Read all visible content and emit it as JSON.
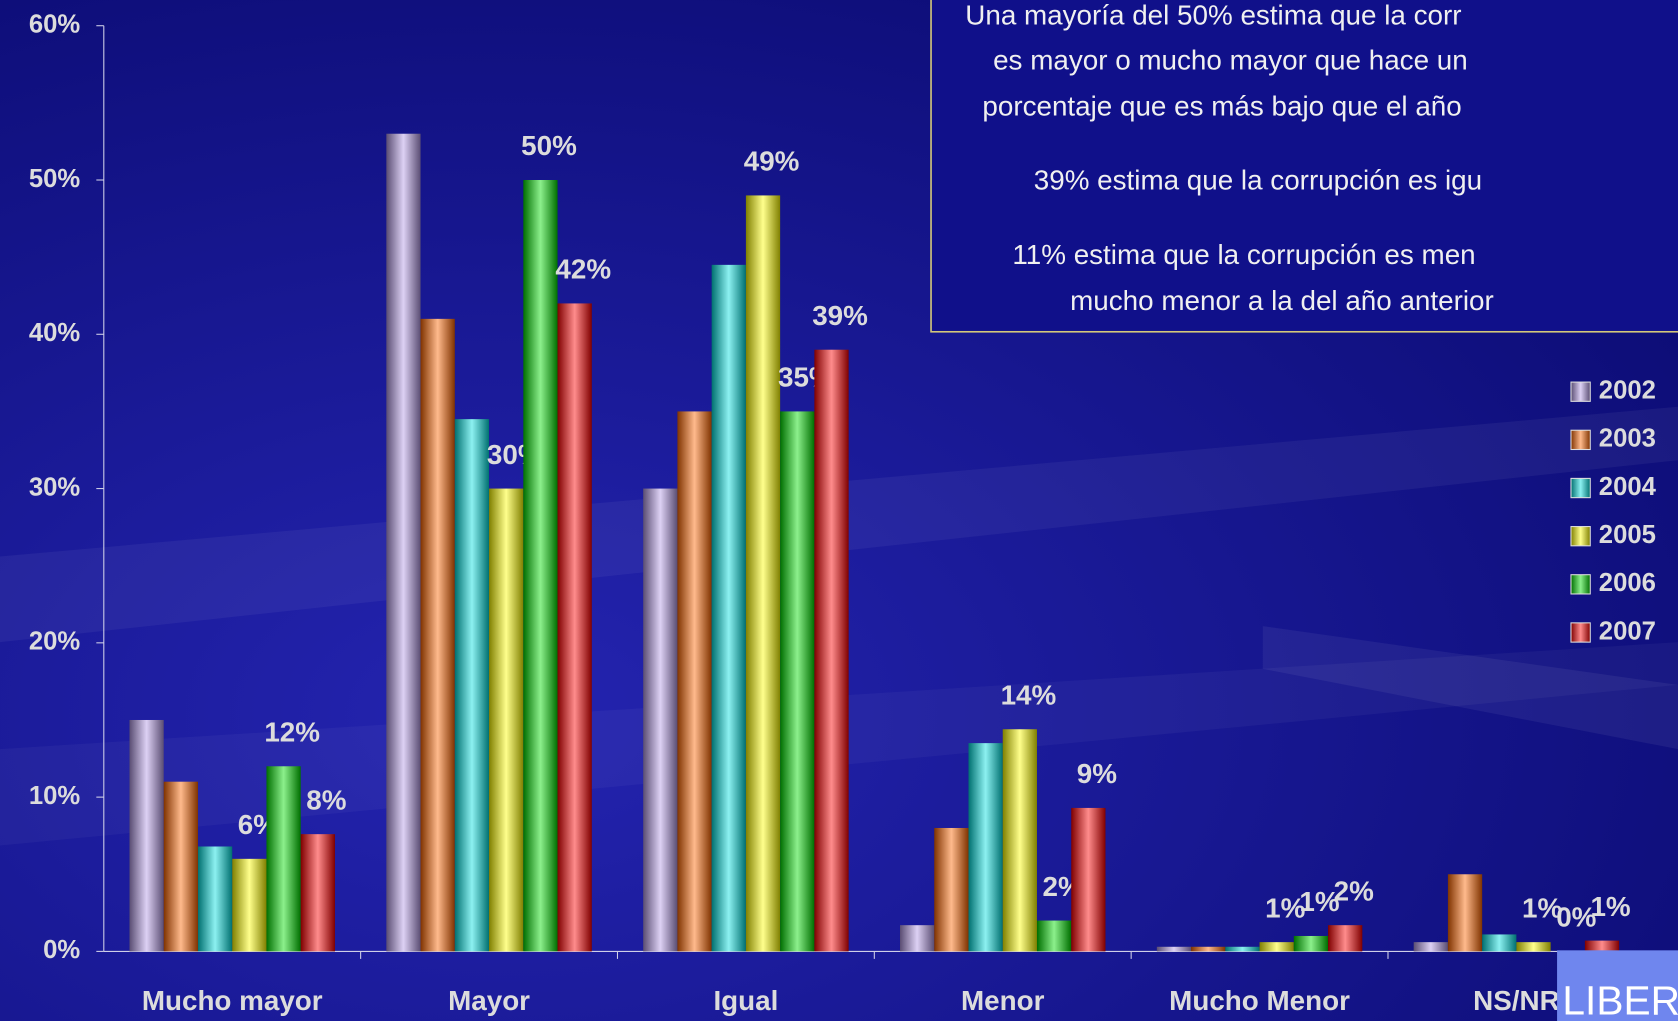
{
  "chart_data": {
    "type": "bar",
    "annotations": [
      "Una mayoría del 50% estima que la corr",
      "es mayor o mucho mayor que hace un",
      "porcentaje que es más bajo que el año",
      "39% estima que la corrupción es igu",
      "11% estima que la corrupción es men",
      "mucho menor a la del año anterior"
    ],
    "logo": "LIBERT",
    "categories": [
      "Mucho mayor",
      "Mayor",
      "Igual",
      "Menor",
      "Mucho Menor",
      "NS/NR"
    ],
    "series": [
      {
        "name": "2002",
        "color": "#b399e6",
        "values": [
          15,
          53,
          30,
          1.7,
          0.3,
          0.6
        ]
      },
      {
        "name": "2003",
        "color": "#ff6600",
        "values": [
          11,
          41,
          35,
          8,
          0.3,
          5
        ]
      },
      {
        "name": "2004",
        "color": "#00e0e0",
        "values": [
          6.8,
          34.5,
          44.5,
          13.5,
          0.3,
          1.1
        ]
      },
      {
        "name": "2005",
        "color": "#ffff00",
        "values": [
          6,
          30,
          49,
          14.4,
          0.6,
          0.6
        ],
        "value_labels": [
          "6%",
          "30%",
          "49%",
          "14%",
          "1%",
          "1%"
        ]
      },
      {
        "name": "2006",
        "color": "#00dd00",
        "values": [
          12,
          50,
          35,
          2,
          1,
          0
        ],
        "value_labels": [
          "12%",
          "50%",
          "35%",
          "2%",
          "1%",
          "0%"
        ]
      },
      {
        "name": "2007",
        "color": "#ff0000",
        "values": [
          7.6,
          42,
          39,
          9.3,
          1.7,
          0.7
        ],
        "value_labels": [
          "8%",
          "42%",
          "39%",
          "9%",
          "2%",
          "1%"
        ]
      }
    ],
    "ylim": [
      0,
      60
    ],
    "yticks": [
      {
        "value": 0,
        "label": "0%"
      },
      {
        "value": 10,
        "label": "10%"
      },
      {
        "value": 20,
        "label": "20%"
      },
      {
        "value": 30,
        "label": "30%"
      },
      {
        "value": 40,
        "label": "40%"
      },
      {
        "value": 50,
        "label": "50%"
      },
      {
        "value": 60,
        "label": "60%"
      }
    ],
    "legend": "right"
  }
}
